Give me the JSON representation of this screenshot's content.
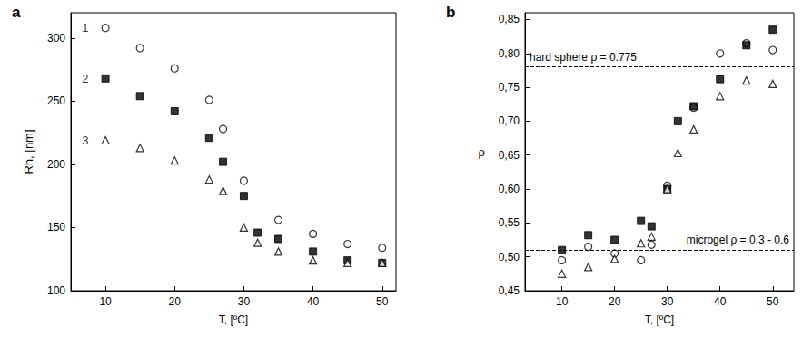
{
  "chart_data": [
    {
      "type": "scatter",
      "title": "a",
      "x_label": "T, [ºC]",
      "y_label": "Rh, [nm]",
      "xlim": [
        5,
        52
      ],
      "xticks": [
        10,
        20,
        30,
        40,
        50
      ],
      "ylim": [
        100,
        320
      ],
      "yticks": [
        100,
        150,
        200,
        250,
        300
      ],
      "grid": false,
      "series": [
        {
          "name": "1",
          "color": "#000000",
          "marker": "open_circle",
          "x": [
            10,
            15,
            20,
            25,
            27,
            30,
            35,
            40,
            45,
            50
          ],
          "values": [
            308,
            292,
            276,
            251,
            228,
            187,
            156,
            145,
            137,
            134
          ]
        },
        {
          "name": "2",
          "color": "#000000",
          "marker": "square",
          "x": [
            10,
            15,
            20,
            25,
            27,
            30,
            32,
            35,
            40,
            45,
            50
          ],
          "values": [
            268,
            254,
            242,
            221,
            202,
            175,
            146,
            141,
            131,
            124,
            122
          ]
        },
        {
          "name": "3",
          "color": "#000000",
          "marker": "open_triangle",
          "x": [
            10,
            15,
            20,
            25,
            27,
            30,
            32,
            35,
            40,
            45,
            50
          ],
          "values": [
            219,
            213,
            203,
            188,
            179,
            150,
            138,
            131,
            124,
            122,
            122
          ]
        }
      ]
    },
    {
      "type": "scatter",
      "title": "b",
      "x_label": "T, [ºC]",
      "y_label": "ρ",
      "xlim": [
        3,
        54
      ],
      "xticks": [
        10,
        20,
        30,
        40,
        50
      ],
      "ylim": [
        0.45,
        0.86
      ],
      "yticks": [
        {
          "value": 0.45,
          "label": "0,45"
        },
        {
          "value": 0.5,
          "label": "0,50"
        },
        {
          "value": 0.55,
          "label": "0,55"
        },
        {
          "value": 0.6,
          "label": "0,60"
        },
        {
          "value": 0.65,
          "label": "0,65"
        },
        {
          "value": 0.7,
          "label": "0,70"
        },
        {
          "value": 0.75,
          "label": "0,75"
        },
        {
          "value": 0.8,
          "label": "0,80"
        },
        {
          "value": 0.85,
          "label": "0,85"
        }
      ],
      "grid": false,
      "reference_lines": [
        {
          "value": 0.775,
          "label": "hard sphere ρ = 0.775"
        },
        {
          "value": 0.513,
          "label": "microgel ρ = 0.3 - 0.6"
        }
      ],
      "series": [
        {
          "color": "#000000",
          "marker": "open_circle",
          "x": [
            10,
            15,
            20,
            25,
            27,
            30,
            35,
            40,
            45,
            50
          ],
          "values": [
            0.495,
            0.515,
            0.505,
            0.495,
            0.518,
            0.605,
            0.72,
            0.8,
            0.815,
            0.805
          ]
        },
        {
          "color": "#000000",
          "marker": "square",
          "x": [
            10,
            15,
            20,
            25,
            27,
            30,
            32,
            35,
            40,
            45,
            50
          ],
          "values": [
            0.51,
            0.532,
            0.525,
            0.553,
            0.545,
            0.6,
            0.7,
            0.722,
            0.762,
            0.812,
            0.835
          ]
        },
        {
          "color": "#000000",
          "marker": "open_triangle",
          "x": [
            10,
            15,
            20,
            25,
            27,
            30,
            32,
            35,
            40,
            45,
            50
          ],
          "values": [
            0.475,
            0.485,
            0.497,
            0.52,
            0.53,
            0.6,
            0.653,
            0.688,
            0.737,
            0.76,
            0.755
          ]
        }
      ]
    }
  ]
}
